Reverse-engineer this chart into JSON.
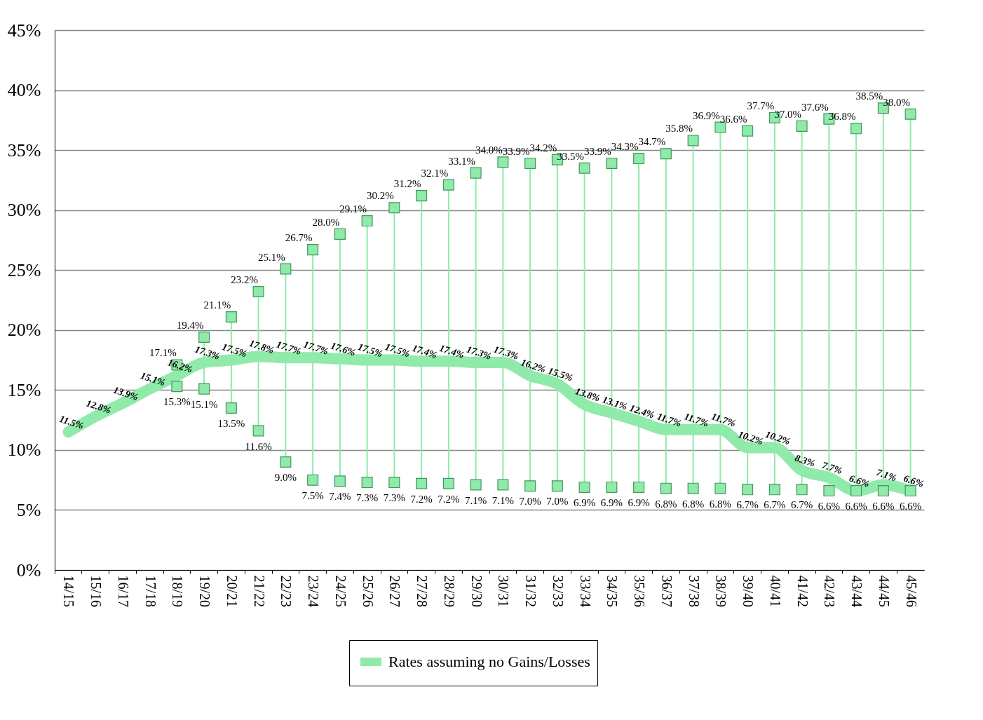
{
  "chart_data": {
    "type": "line",
    "legend": "bottom",
    "grid": "y",
    "categories": [
      "14/15",
      "15/16",
      "16/17",
      "17/18",
      "18/19",
      "19/20",
      "20/21",
      "21/22",
      "22/23",
      "23/24",
      "24/25",
      "25/26",
      "26/27",
      "27/28",
      "28/29",
      "29/30",
      "30/31",
      "31/32",
      "32/33",
      "33/34",
      "34/35",
      "35/36",
      "36/37",
      "37/38",
      "38/39",
      "39/40",
      "40/41",
      "41/42",
      "42/43",
      "43/44",
      "44/45",
      "45/46"
    ],
    "ylim": [
      0,
      45
    ],
    "yticks": [
      {
        "value": 0,
        "label": "0%"
      },
      {
        "value": 5,
        "label": "5%"
      },
      {
        "value": 10,
        "label": "10%"
      },
      {
        "value": 15,
        "label": "15%"
      },
      {
        "value": 20,
        "label": "20%"
      },
      {
        "value": 25,
        "label": "25%"
      },
      {
        "value": 30,
        "label": "30%"
      },
      {
        "value": 35,
        "label": "35%"
      },
      {
        "value": 40,
        "label": "40%"
      },
      {
        "value": 45,
        "label": "45%"
      }
    ],
    "series": [
      {
        "name": "Rates assuming no Gains/Losses",
        "color": "#90eaaa",
        "values": [
          11.5,
          12.8,
          13.9,
          15.1,
          16.2,
          17.3,
          17.5,
          17.8,
          17.7,
          17.7,
          17.6,
          17.5,
          17.5,
          17.4,
          17.4,
          17.3,
          17.3,
          16.2,
          15.5,
          13.8,
          13.1,
          12.4,
          11.7,
          11.7,
          11.7,
          10.2,
          10.2,
          8.3,
          7.7,
          6.6,
          7.1,
          6.6
        ],
        "value_labels": [
          "11.5%",
          "12.8%",
          "13.9%",
          "15.1%",
          "16.2%",
          "17.3%",
          "17.5%",
          "17.8%",
          "17.7%",
          "17.7%",
          "17.6%",
          "17.5%",
          "17.5%",
          "17.4%",
          "17.4%",
          "17.3%",
          "17.3%",
          "16.2%",
          "15.5%",
          "13.8%",
          "13.1%",
          "12.4%",
          "11.7%",
          "11.7%",
          "11.7%",
          "10.2%",
          "10.2%",
          "8.3%",
          "7.7%",
          "6.6%",
          "7.1%",
          "6.6%"
        ]
      },
      {
        "type": "scatter",
        "marker": "square",
        "color": "#90eaaa",
        "values": [
          null,
          null,
          null,
          null,
          17.1,
          19.4,
          21.1,
          23.2,
          25.1,
          26.7,
          28.0,
          29.1,
          30.2,
          31.2,
          32.1,
          33.1,
          34.0,
          33.9,
          34.2,
          33.5,
          33.9,
          34.3,
          34.7,
          35.8,
          36.9,
          36.6,
          37.7,
          37.0,
          37.6,
          36.8,
          38.5,
          38.0
        ],
        "value_labels": [
          null,
          null,
          null,
          null,
          "17.1%",
          "19.4%",
          "21.1%",
          "23.2%",
          "25.1%",
          "26.7%",
          "28.0%",
          "29.1%",
          "30.2%",
          "31.2%",
          "32.1%",
          "33.1%",
          "34.0%",
          "33.9%",
          "34.2%",
          "33.5%",
          "33.9%",
          "34.3%",
          "34.7%",
          "35.8%",
          "36.9%",
          "36.6%",
          "37.7%",
          "37.0%",
          "37.6%",
          "36.8%",
          "38.5%",
          "38.0%"
        ]
      },
      {
        "type": "scatter",
        "marker": "square",
        "color": "#90eaaa",
        "values": [
          null,
          null,
          null,
          null,
          15.3,
          15.1,
          13.5,
          11.6,
          9.0,
          7.5,
          7.4,
          7.3,
          7.3,
          7.2,
          7.2,
          7.1,
          7.1,
          7.0,
          7.0,
          6.9,
          6.9,
          6.9,
          6.8,
          6.8,
          6.8,
          6.7,
          6.7,
          6.7,
          6.6,
          6.6,
          6.6,
          6.6
        ],
        "value_labels": [
          null,
          null,
          null,
          null,
          "15.3%",
          "15.1%",
          "13.5%",
          "11.6%",
          "9.0%",
          "7.5%",
          "7.4%",
          "7.3%",
          "7.3%",
          "7.2%",
          "7.2%",
          "7.1%",
          "7.1%",
          "7.0%",
          "7.0%",
          "6.9%",
          "6.9%",
          "6.9%",
          "6.8%",
          "6.8%",
          "6.8%",
          "6.7%",
          "6.7%",
          "6.7%",
          "6.6%",
          "6.6%",
          "6.6%",
          "6.6%"
        ]
      }
    ]
  }
}
